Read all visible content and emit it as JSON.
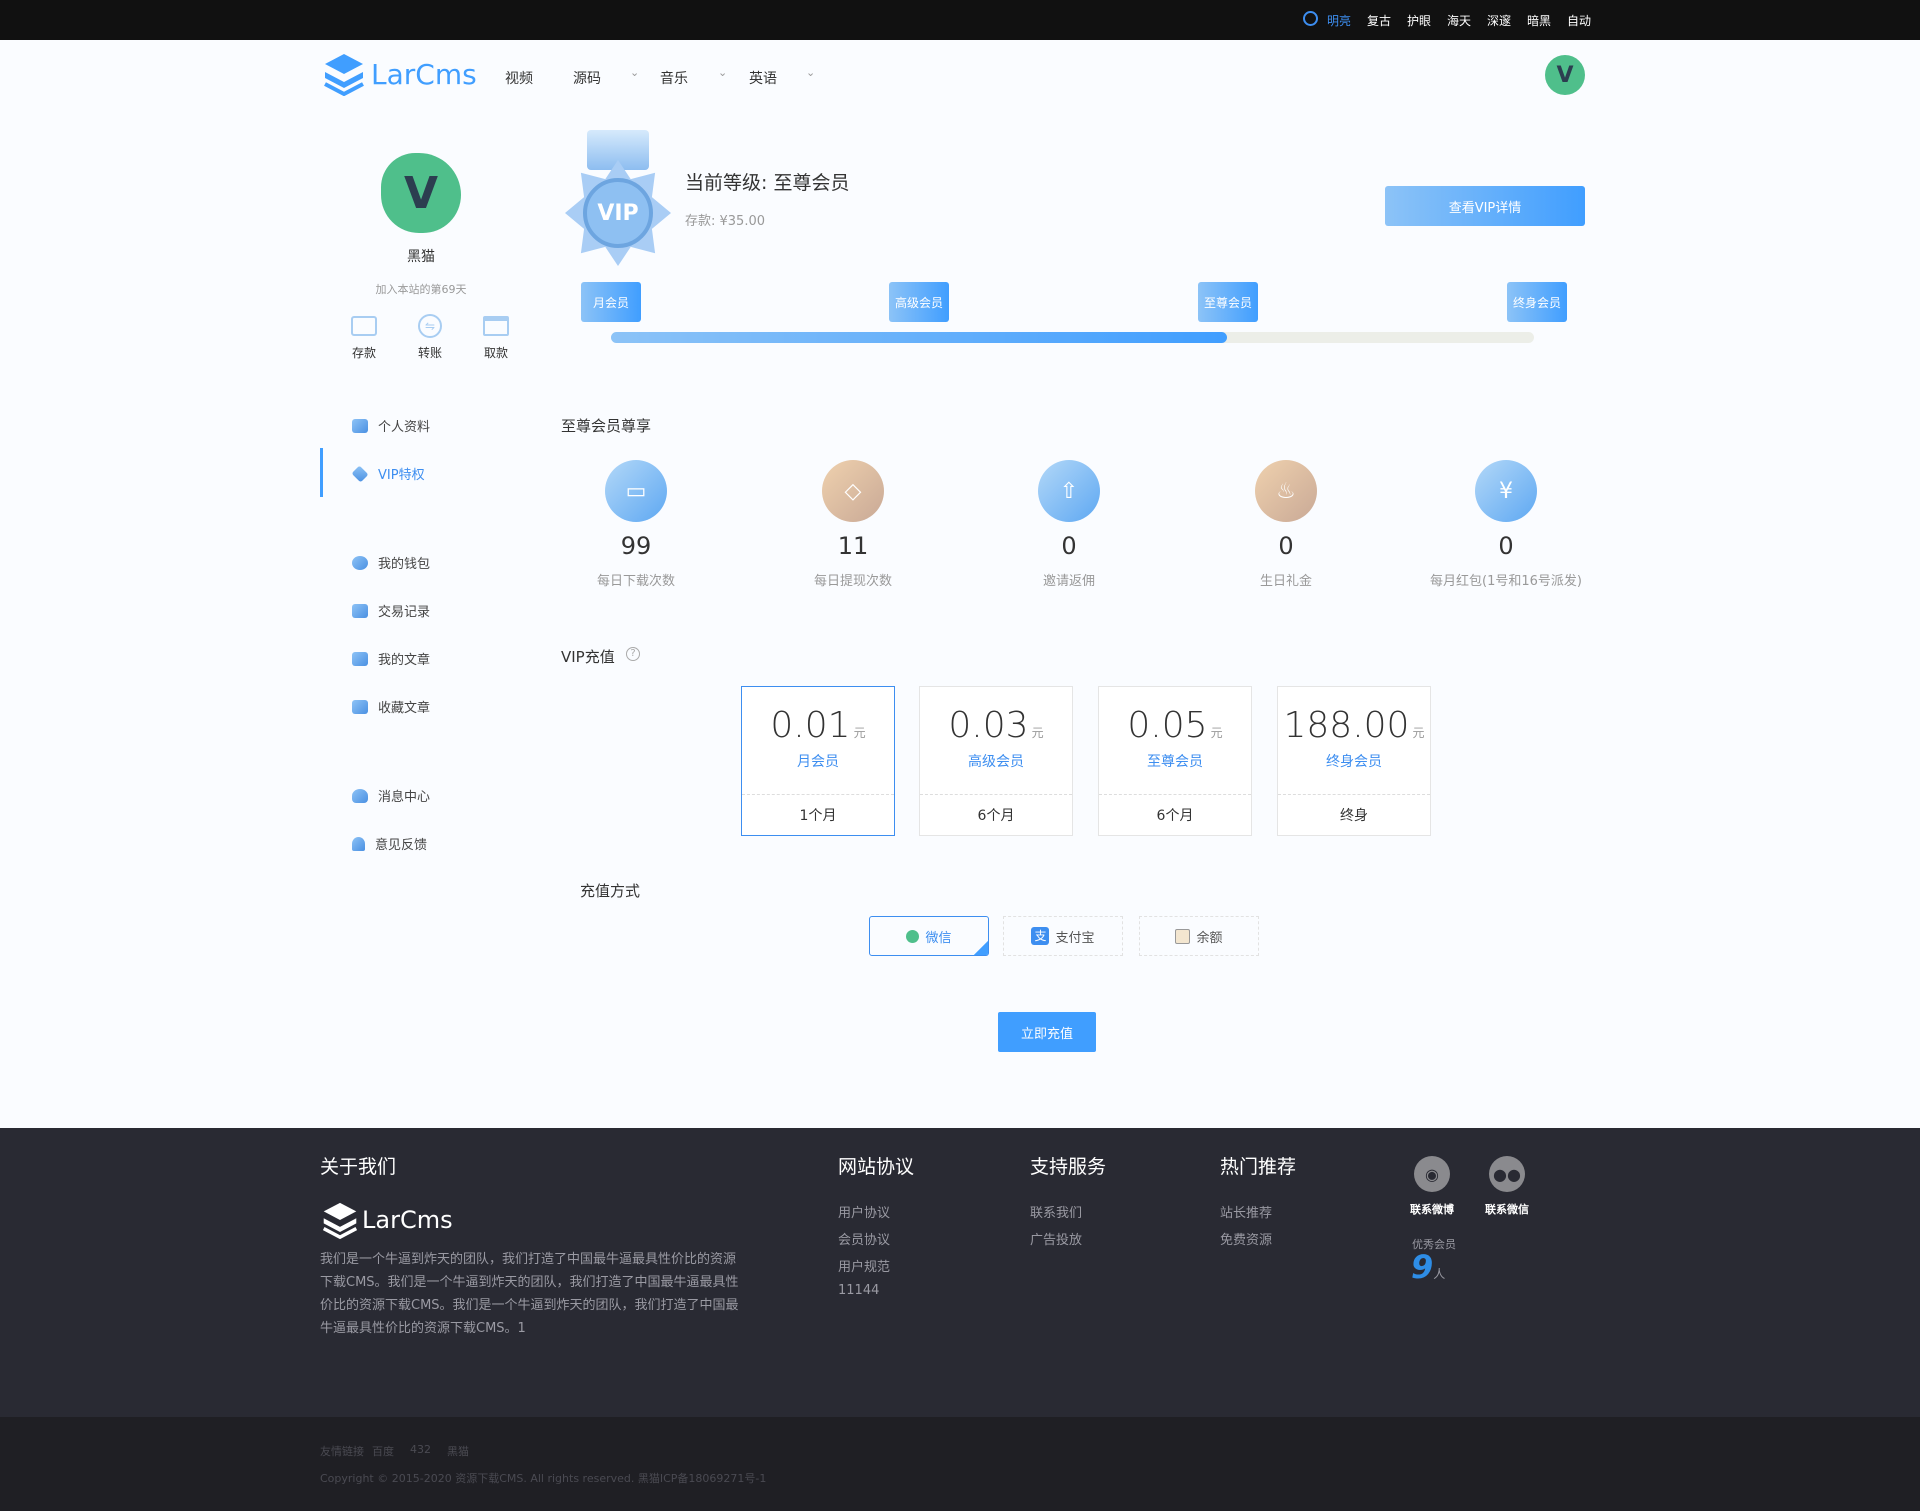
{
  "themes": [
    "明亮",
    "复古",
    "护眼",
    "海天",
    "深邃",
    "暗黑",
    "自动"
  ],
  "brand": {
    "logo": "LarCms",
    "accent": "#409eff"
  },
  "nav": [
    {
      "label": "视频"
    },
    {
      "label": "源码"
    },
    {
      "label": "音乐"
    },
    {
      "label": "英语"
    }
  ],
  "header": {
    "avatar_letter": "V"
  },
  "profile": {
    "avatar_letter": "V",
    "name": "黑猫",
    "joined": "加入本站的第69天",
    "actions": [
      {
        "label": "存款",
        "icon": "wallet-icon"
      },
      {
        "label": "转账",
        "icon": "transfer-icon"
      },
      {
        "label": "取款",
        "icon": "card-icon"
      }
    ]
  },
  "sidebar": {
    "items": [
      {
        "label": "个人资料"
      },
      {
        "label": "VIP特权",
        "active": true
      },
      {
        "label": "我的钱包"
      },
      {
        "label": "交易记录"
      },
      {
        "label": "我的文章"
      },
      {
        "label": "收藏文章"
      },
      {
        "label": "消息中心"
      },
      {
        "label": "意见反馈"
      }
    ]
  },
  "vip": {
    "badge_text": "VIP",
    "level_label": "当前等级: 至尊会员",
    "balance": "存款: ¥35.00",
    "detail_button": "查看VIP详情",
    "levels": [
      "月会员",
      "高级会员",
      "至尊会员",
      "终身会员"
    ],
    "progress_percent": 66.7
  },
  "benefits": {
    "title": "至尊会员尊享",
    "items": [
      {
        "value": "99",
        "label": "每日下载次数"
      },
      {
        "value": "11",
        "label": "每日提现次数"
      },
      {
        "value": "0",
        "label": "邀请返佣"
      },
      {
        "value": "0",
        "label": "生日礼金"
      },
      {
        "value": "0",
        "label": "每月红包(1号和16号派发)"
      }
    ]
  },
  "recharge": {
    "title": "VIP充值",
    "currency": "元",
    "plans": [
      {
        "price": "0.01",
        "name": "月会员",
        "period": "1个月",
        "selected": true
      },
      {
        "price": "0.03",
        "name": "高级会员",
        "period": "6个月"
      },
      {
        "price": "0.05",
        "name": "至尊会员",
        "period": "6个月"
      },
      {
        "price": "188.00",
        "name": "终身会员",
        "period": "终身"
      }
    ],
    "method_title": "充值方式",
    "methods": [
      {
        "label": "微信",
        "selected": true
      },
      {
        "label": "支付宝"
      },
      {
        "label": "余额"
      }
    ],
    "submit": "立即充值"
  },
  "footer": {
    "about_title": "关于我们",
    "logo": "LarCms",
    "about_text": "我们是一个牛逼到炸天的团队，我们打造了中国最牛逼最具性价比的资源下载CMS。我们是一个牛逼到炸天的团队，我们打造了中国最牛逼最具性价比的资源下载CMS。我们是一个牛逼到炸天的团队，我们打造了中国最牛逼最具性价比的资源下载CMS。1",
    "cols": [
      {
        "title": "网站协议",
        "links": [
          "用户协议",
          "会员协议",
          "用户规范",
          "11144"
        ]
      },
      {
        "title": "支持服务",
        "links": [
          "联系我们",
          "广告投放"
        ]
      },
      {
        "title": "热门推荐",
        "links": [
          "站长推荐",
          "免费资源"
        ]
      }
    ],
    "weibo": "联系微博",
    "wechat": "联系微信",
    "members_label": "优秀会员",
    "members_count": "9",
    "members_unit": "人",
    "friend_links": [
      "友情链接",
      "百度",
      "432",
      "黑猫"
    ],
    "copyright": "Copyright © 2015-2020 资源下载CMS. All rights reserved. 黑猫ICP备18069271号-1"
  }
}
